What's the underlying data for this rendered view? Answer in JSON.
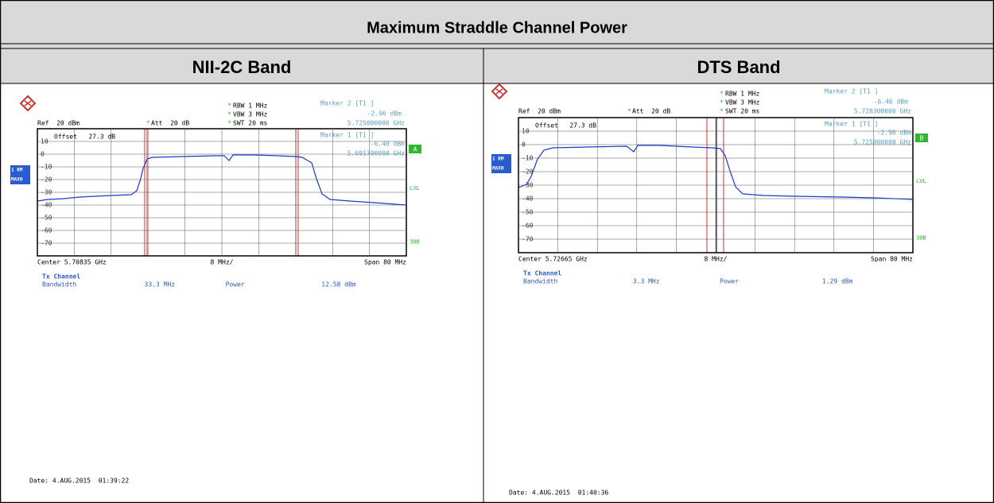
{
  "title": "Maximum Straddle Channel Power",
  "panels": [
    {
      "header": "NII-2C Band",
      "rbw": "RBW 1 MHz",
      "vbw": "VBW 3 MHz",
      "swt": "SWT 20 ms",
      "ref": "Ref  20 dBm",
      "att": "Att  20 dB",
      "offset": "Offset   27.3 dB",
      "marker2": {
        "label": "Marker 2 [T1 ]",
        "level": "-2.96 dBm",
        "freq": "5.725000000 GHz"
      },
      "marker1": {
        "label": "Marker 1 [T1 ]",
        "level": "-6.40 dBm",
        "freq": "5.691790000 GHz"
      },
      "trace": "1 RM",
      "mode": "MAXH",
      "tag": "A",
      "lvl": "LVL",
      "db": "3DB",
      "y_labels": [
        "10",
        "0",
        "-10",
        "-20",
        "-30",
        "-40",
        "-50",
        "-60",
        "-70"
      ],
      "center": "Center 5.70835 GHz",
      "div": "8 MHz/",
      "span": "Span 80 MHz",
      "tx": "Tx Channel",
      "bw_label": "Bandwidth",
      "bw": "33.3 MHz",
      "power_label": "Power",
      "power": "12.58 dBm",
      "date": "Date: 4.AUG.2015  01:39:22"
    },
    {
      "header": "DTS Band",
      "rbw": "RBW 1 MHz",
      "vbw": "VBW 3 MHz",
      "swt": "SWT 20 ms",
      "ref": "Ref  20 dBm",
      "att": "Att  20 dB",
      "offset": "Offset   27.3 dB",
      "marker2": {
        "label": "Marker 2 [T1 ]",
        "level": "-6.46 dBm",
        "freq": "5.728300000 GHz"
      },
      "marker1": {
        "label": "Marker 1 [T1 ]",
        "level": "-2.96 dBm",
        "freq": "5.725000000 GHz"
      },
      "trace": "1 RM",
      "mode": "MAXH",
      "tag": "B",
      "lvl": "LVL",
      "db": "3DB",
      "y_labels": [
        "10",
        "0",
        "-10",
        "-20",
        "-30",
        "-40",
        "-50",
        "-60",
        "-70"
      ],
      "center": "Center 5.72665 GHz",
      "div": "8 MHz/",
      "span": "Span 80 MHz",
      "tx": "Tx Channel",
      "bw_label": "Bandwidth",
      "bw": "3.3 MHz",
      "power_label": "Power",
      "power": "1.29 dBm",
      "date": "Date: 4.AUG.2015  01:40:36"
    }
  ]
}
